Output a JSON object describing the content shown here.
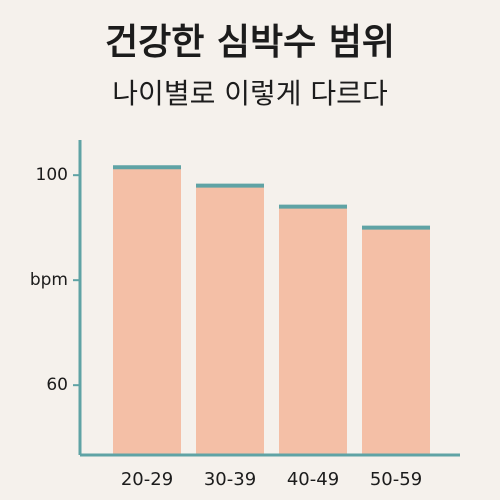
{
  "chart_data": {
    "type": "bar",
    "title": "건강한 심박수 범위",
    "subtitle": "나이별로 이렇게 다르다",
    "categories": [
      "20-29",
      "30-39",
      "40-49",
      "50-59"
    ],
    "values": [
      101.5,
      98,
      94,
      90
    ],
    "color": "#f4bfa6",
    "cap_color": "#5fa3a5",
    "axis_color": "#5fa3a5",
    "ylim": [
      46.7,
      106.7
    ],
    "yticks": [
      60,
      {
        "value": 80,
        "label": "bpm"
      },
      100
    ]
  }
}
